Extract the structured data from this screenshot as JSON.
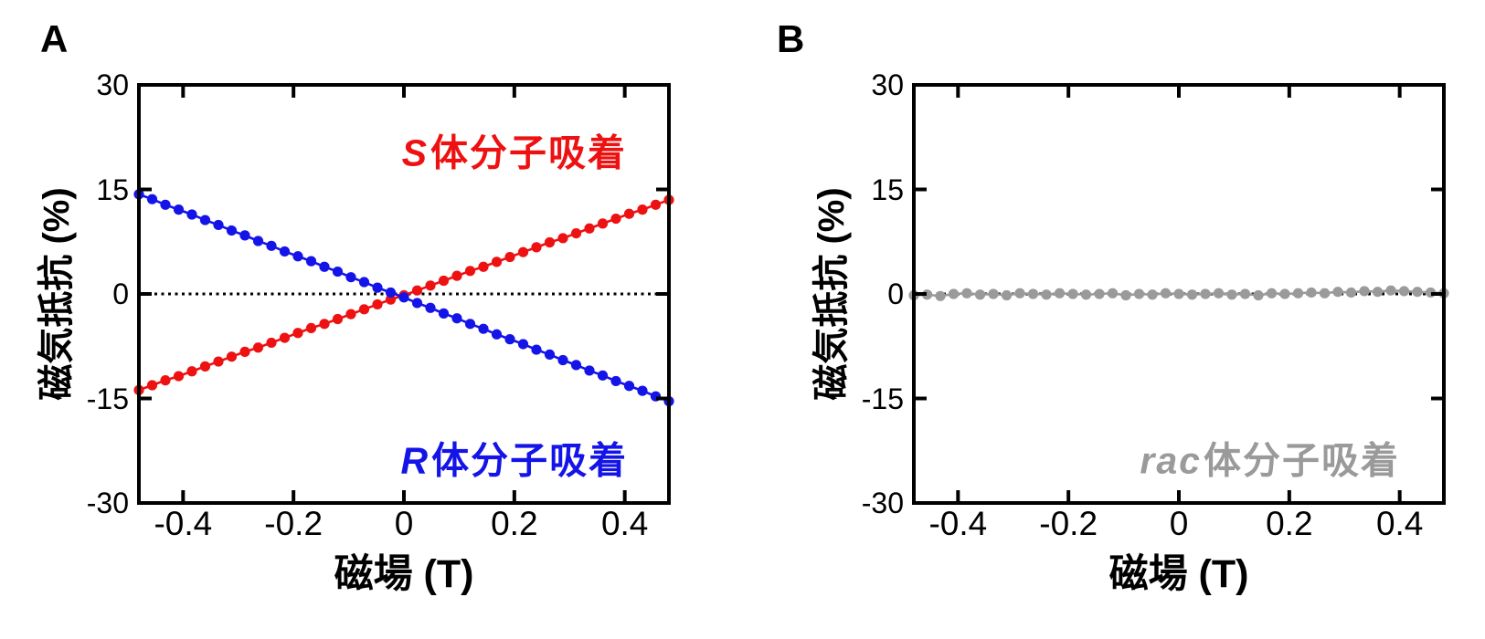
{
  "figure_background": "#ffffff",
  "axis_color": "#000000",
  "chart_data": [
    {
      "type": "scatter",
      "panel_label": "A",
      "xlabel": "磁場 (T)",
      "ylabel": "磁気抵抗 (%)",
      "xlim": [
        -0.48,
        0.48
      ],
      "ylim": [
        -30,
        30
      ],
      "x_ticks": {
        "values": [
          -0.4,
          -0.2,
          0,
          0.2,
          0.4
        ],
        "labels": [
          "-0.4",
          "-0.2",
          "0",
          "0.2",
          "0.4"
        ]
      },
      "y_ticks": {
        "values": [
          30,
          15,
          0,
          -15,
          -30
        ],
        "labels": [
          "30",
          "15",
          "0",
          "-15",
          "-30"
        ]
      },
      "zero_line": {
        "y": 0,
        "style": "dotted",
        "color": "#000000"
      },
      "grid": false,
      "legend_position": "inside-annotations",
      "x": [
        -0.48,
        -0.456,
        -0.432,
        -0.408,
        -0.384,
        -0.36,
        -0.336,
        -0.312,
        -0.288,
        -0.264,
        -0.24,
        -0.216,
        -0.192,
        -0.168,
        -0.144,
        -0.12,
        -0.096,
        -0.072,
        -0.048,
        -0.024,
        0,
        0.024,
        0.048,
        0.072,
        0.096,
        0.12,
        0.144,
        0.168,
        0.192,
        0.216,
        0.24,
        0.264,
        0.288,
        0.312,
        0.336,
        0.36,
        0.384,
        0.408,
        0.432,
        0.456,
        0.48
      ],
      "series": [
        {
          "name": "S体分子吸着",
          "label_italic": "S",
          "label_rest": "体分子吸着",
          "color": "#ee1111",
          "marker": "circle",
          "label_pos": {
            "x": 0.2,
            "y": 20.2
          },
          "values": [
            -13.8,
            -13.1,
            -12.4,
            -11.8,
            -11.1,
            -10.4,
            -9.7,
            -9.0,
            -8.3,
            -7.7,
            -7.0,
            -6.3,
            -5.6,
            -4.9,
            -4.3,
            -3.6,
            -2.9,
            -2.2,
            -1.5,
            -0.8,
            -0.2,
            0.5,
            1.2,
            1.9,
            2.6,
            3.3,
            3.9,
            4.6,
            5.3,
            6.0,
            6.7,
            7.4,
            8.0,
            8.7,
            9.4,
            10.1,
            10.8,
            11.5,
            12.1,
            12.8,
            13.5
          ]
        },
        {
          "name": "R体分子吸着",
          "label_italic": "R",
          "label_rest": "体分子吸着",
          "color": "#1414e8",
          "marker": "circle",
          "label_pos": {
            "x": 0.2,
            "y": -24.0
          },
          "values": [
            14.3,
            13.6,
            12.8,
            12.1,
            11.4,
            10.6,
            9.9,
            9.1,
            8.4,
            7.6,
            6.9,
            6.1,
            5.4,
            4.7,
            3.9,
            3.2,
            2.4,
            1.7,
            0.9,
            0.2,
            -0.5,
            -1.3,
            -2.0,
            -2.8,
            -3.5,
            -4.3,
            -5.0,
            -5.8,
            -6.5,
            -7.2,
            -8.0,
            -8.7,
            -9.5,
            -10.2,
            -11.0,
            -11.7,
            -12.5,
            -13.2,
            -13.9,
            -14.7,
            -15.4
          ]
        }
      ]
    },
    {
      "type": "scatter",
      "panel_label": "B",
      "xlabel": "磁場 (T)",
      "ylabel": "磁気抵抗 (%)",
      "xlim": [
        -0.48,
        0.48
      ],
      "ylim": [
        -30,
        30
      ],
      "x_ticks": {
        "values": [
          -0.4,
          -0.2,
          0,
          0.2,
          0.4
        ],
        "labels": [
          "-0.4",
          "-0.2",
          "0",
          "0.2",
          "0.4"
        ]
      },
      "y_ticks": {
        "values": [
          30,
          15,
          0,
          -15,
          -30
        ],
        "labels": [
          "30",
          "15",
          "0",
          "-15",
          "-30"
        ]
      },
      "zero_line": {
        "y": 0,
        "style": "dotted",
        "color": "#000000"
      },
      "grid": false,
      "legend_position": "inside-annotations",
      "x": [
        -0.48,
        -0.456,
        -0.432,
        -0.408,
        -0.384,
        -0.36,
        -0.336,
        -0.312,
        -0.288,
        -0.264,
        -0.24,
        -0.216,
        -0.192,
        -0.168,
        -0.144,
        -0.12,
        -0.096,
        -0.072,
        -0.048,
        -0.024,
        0,
        0.024,
        0.048,
        0.072,
        0.096,
        0.12,
        0.144,
        0.168,
        0.192,
        0.216,
        0.24,
        0.264,
        0.288,
        0.312,
        0.336,
        0.36,
        0.384,
        0.408,
        0.432,
        0.456,
        0.48
      ],
      "series": [
        {
          "name": "rac体分子吸着",
          "label_italic": "rac",
          "label_rest": "体分子吸着",
          "color": "#9a9a9a",
          "marker": "circle",
          "label_pos": {
            "x": 0.165,
            "y": -24.0
          },
          "values": [
            -0.2,
            -0.1,
            -0.3,
            0.0,
            0.1,
            -0.1,
            0.0,
            -0.2,
            0.1,
            0.0,
            -0.1,
            0.1,
            0.0,
            -0.1,
            0.0,
            0.1,
            -0.2,
            0.0,
            -0.1,
            0.1,
            0.0,
            -0.1,
            0.0,
            0.1,
            -0.1,
            0.0,
            -0.2,
            0.1,
            0.0,
            0.1,
            0.2,
            0.1,
            0.3,
            0.2,
            0.4,
            0.3,
            0.5,
            0.4,
            0.3,
            0.2,
            0.1
          ]
        }
      ]
    }
  ]
}
